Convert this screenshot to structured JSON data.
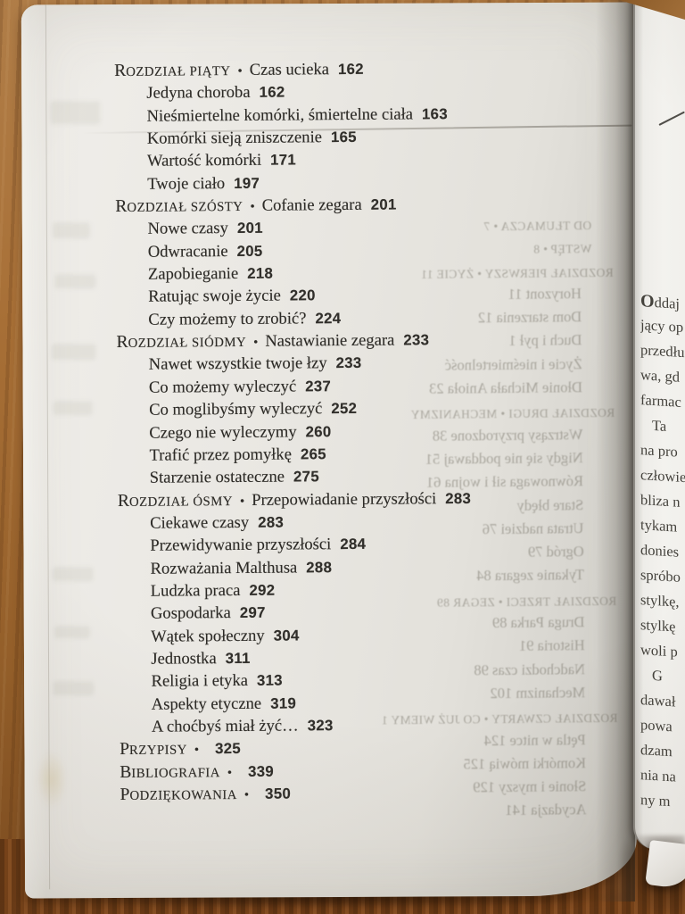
{
  "document": {
    "language": "pl",
    "kind": "book-table-of-contents-photo",
    "bullet": "•",
    "toc": [
      {
        "kind": "chapter",
        "name": "Rozdział piąty",
        "title": "Czas ucieka",
        "page": "162"
      },
      {
        "kind": "item",
        "title": "Jedyna choroba",
        "page": "162"
      },
      {
        "kind": "item",
        "title": "Nieśmiertelne komórki, śmiertelne ciała",
        "page": "163"
      },
      {
        "kind": "item",
        "title": "Komórki sieją zniszczenie",
        "page": "165"
      },
      {
        "kind": "item",
        "title": "Wartość komórki",
        "page": "171"
      },
      {
        "kind": "item",
        "title": "Twoje ciało",
        "page": "197"
      },
      {
        "kind": "chapter",
        "name": "Rozdział szósty",
        "title": "Cofanie zegara",
        "page": "201"
      },
      {
        "kind": "item",
        "title": "Nowe czasy",
        "page": "201"
      },
      {
        "kind": "item",
        "title": "Odwracanie",
        "page": "205"
      },
      {
        "kind": "item",
        "title": "Zapobieganie",
        "page": "218"
      },
      {
        "kind": "item",
        "title": "Ratując swoje życie",
        "page": "220"
      },
      {
        "kind": "item",
        "title": "Czy możemy to zrobić?",
        "page": "224"
      },
      {
        "kind": "chapter",
        "name": "Rozdział siódmy",
        "title": "Nastawianie zegara",
        "page": "233"
      },
      {
        "kind": "item",
        "title": "Nawet wszystkie twoje łzy",
        "page": "233"
      },
      {
        "kind": "item",
        "title": "Co możemy wyleczyć",
        "page": "237"
      },
      {
        "kind": "item",
        "title": "Co moglibyśmy wyleczyć",
        "page": "252"
      },
      {
        "kind": "item",
        "title": "Czego nie wyleczymy",
        "page": "260"
      },
      {
        "kind": "item",
        "title": "Trafić przez pomyłkę",
        "page": "265"
      },
      {
        "kind": "item",
        "title": "Starzenie ostateczne",
        "page": "275"
      },
      {
        "kind": "chapter",
        "name": "Rozdział ósmy",
        "title": "Przepowiadanie przyszłości",
        "page": "283"
      },
      {
        "kind": "item",
        "title": "Ciekawe czasy",
        "page": "283"
      },
      {
        "kind": "item",
        "title": "Przewidywanie przyszłości",
        "page": "284"
      },
      {
        "kind": "item",
        "title": "Rozważania Malthusa",
        "page": "288"
      },
      {
        "kind": "item",
        "title": "Ludzka praca",
        "page": "292"
      },
      {
        "kind": "item",
        "title": "Gospodarka",
        "page": "297"
      },
      {
        "kind": "item",
        "title": "Wątek społeczny",
        "page": "304"
      },
      {
        "kind": "item",
        "title": "Jednostka",
        "page": "311"
      },
      {
        "kind": "item",
        "title": "Religia i etyka",
        "page": "313"
      },
      {
        "kind": "item",
        "title": "Aspekty etyczne",
        "page": "319"
      },
      {
        "kind": "item",
        "title": "A choćbyś miał żyć…",
        "page": "323"
      },
      {
        "kind": "terminal",
        "name": "Przypisy",
        "page": "325"
      },
      {
        "kind": "terminal",
        "name": "Bibliografia",
        "page": "339"
      },
      {
        "kind": "terminal",
        "name": "Podziękowania",
        "page": "350"
      }
    ],
    "bleedthrough": {
      "note": "mirrored text showing through from reverse side of the page",
      "lines": [
        {
          "kind": "front",
          "text": "Od tłumacza • 7"
        },
        {
          "kind": "front",
          "text": "Wstęp • 8"
        },
        {
          "kind": "chapter",
          "text": "Rozdział pierwszy • Życie 11"
        },
        {
          "kind": "item",
          "text": "Horyzont 11"
        },
        {
          "kind": "item",
          "text": "Dom starzenia 12"
        },
        {
          "kind": "item",
          "text": "Duch i pył 1"
        },
        {
          "kind": "item",
          "text": "Życie i nieśmiertelność"
        },
        {
          "kind": "item",
          "text": "Dłonie Michała Anioła 23"
        },
        {
          "kind": "chapter",
          "text": "Rozdział drugi • Mechanizmy"
        },
        {
          "kind": "item",
          "text": "Wstrząsy przyrodzone 38"
        },
        {
          "kind": "item",
          "text": "Nigdy się nie poddawaj 51"
        },
        {
          "kind": "item",
          "text": "Równowaga sił i wojna 61"
        },
        {
          "kind": "item",
          "text": "Stare błędy"
        },
        {
          "kind": "item",
          "text": "Utrata nadziei 76"
        },
        {
          "kind": "item",
          "text": "Ogród 79"
        },
        {
          "kind": "item",
          "text": "Tykanie zegara 84"
        },
        {
          "kind": "chapter",
          "text": "Rozdział trzeci • Zegar 89"
        },
        {
          "kind": "item",
          "text": "Druga Parka 89"
        },
        {
          "kind": "item",
          "text": "Historia 91"
        },
        {
          "kind": "item",
          "text": "Nadchodzi czas 98"
        },
        {
          "kind": "item",
          "text": "Mechanizm 102"
        },
        {
          "kind": "chapter",
          "text": "Rozdział czwarty • Co już wiemy 1"
        },
        {
          "kind": "item",
          "text": "Pętla w nitce 124"
        },
        {
          "kind": "item",
          "text": "Komórki mówią 125"
        },
        {
          "kind": "item",
          "text": "Słonie i myszy 129"
        },
        {
          "kind": "item",
          "text": "Acydazja 141"
        }
      ]
    },
    "facing_page": {
      "note": "left margin of the opposite page, lines clipped by photo edge",
      "lines": [
        {
          "text": "Oddaj",
          "indent": false,
          "dropcap": true
        },
        {
          "text": "jący op",
          "indent": false,
          "dropcap": false
        },
        {
          "text": "przedłu",
          "indent": false,
          "dropcap": false
        },
        {
          "text": "wa, gd",
          "indent": false,
          "dropcap": false
        },
        {
          "text": "farmac",
          "indent": false,
          "dropcap": false
        },
        {
          "text": "Ta",
          "indent": true,
          "dropcap": false
        },
        {
          "text": "na pro",
          "indent": false,
          "dropcap": false
        },
        {
          "text": "człowie",
          "indent": false,
          "dropcap": false
        },
        {
          "text": "bliza n",
          "indent": false,
          "dropcap": false
        },
        {
          "text": "tykam",
          "indent": false,
          "dropcap": false
        },
        {
          "text": "donies",
          "indent": false,
          "dropcap": false
        },
        {
          "text": "spróbo",
          "indent": false,
          "dropcap": false
        },
        {
          "text": "stylkę,",
          "indent": false,
          "dropcap": false
        },
        {
          "text": "stylkę",
          "indent": false,
          "dropcap": false
        },
        {
          "text": "woli p",
          "indent": false,
          "dropcap": false
        },
        {
          "text": "G",
          "indent": true,
          "dropcap": false
        },
        {
          "text": "dawał",
          "indent": false,
          "dropcap": false
        },
        {
          "text": "powa",
          "indent": false,
          "dropcap": false
        },
        {
          "text": "dzam",
          "indent": false,
          "dropcap": false
        },
        {
          "text": "nia na",
          "indent": false,
          "dropcap": false
        },
        {
          "text": "ny m",
          "indent": false,
          "dropcap": false
        }
      ]
    },
    "colors": {
      "paper": "#eae8e3",
      "paper_edge": "#f5f4f0",
      "ink": "#2d2b27",
      "page_number_ink": "#312f2b",
      "bleed_ink": "#7a766c",
      "wood_light": "#b5814a",
      "wood_dark": "#6a3c15",
      "gutter_line": "#8e8b85"
    }
  }
}
